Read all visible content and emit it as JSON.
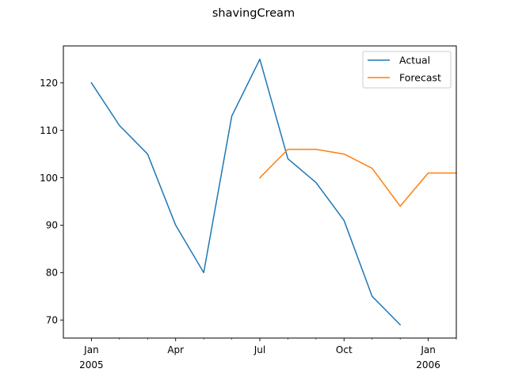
{
  "chart_data": {
    "type": "line",
    "title": "shavingCream",
    "xlabel": "",
    "ylabel": "",
    "xlim": [
      "2004-12",
      "2006-02"
    ],
    "ylim": [
      66.2,
      127.8
    ],
    "grid": false,
    "legend_position": "top-right",
    "yticks": [
      70,
      80,
      90,
      100,
      110,
      120
    ],
    "xticks": [
      {
        "date": "2005-01",
        "label": "Jan",
        "sublabel": "2005"
      },
      {
        "date": "2005-04",
        "label": "Apr",
        "sublabel": ""
      },
      {
        "date": "2005-07",
        "label": "Jul",
        "sublabel": ""
      },
      {
        "date": "2005-10",
        "label": "Oct",
        "sublabel": ""
      },
      {
        "date": "2006-01",
        "label": "Jan",
        "sublabel": "2006"
      }
    ],
    "minor_ticks": [
      "2005-02",
      "2005-03",
      "2005-05",
      "2005-06",
      "2005-08",
      "2005-09",
      "2005-11",
      "2005-12",
      "2006-02"
    ],
    "series": [
      {
        "name": "Actual",
        "color": "#1f77b4",
        "x": [
          "2005-01",
          "2005-02",
          "2005-03",
          "2005-04",
          "2005-05",
          "2005-06",
          "2005-07",
          "2005-08",
          "2005-09",
          "2005-10",
          "2005-11",
          "2005-12"
        ],
        "values": [
          120,
          111,
          105,
          90,
          80,
          113,
          125,
          104,
          99,
          91,
          75,
          69
        ]
      },
      {
        "name": "Forecast",
        "color": "#ff7f0e",
        "x": [
          "2005-07",
          "2005-08",
          "2005-09",
          "2005-10",
          "2005-11",
          "2005-12",
          "2006-01",
          "2006-02"
        ],
        "values": [
          100,
          106,
          106,
          105,
          102,
          94,
          101,
          101
        ]
      }
    ]
  }
}
